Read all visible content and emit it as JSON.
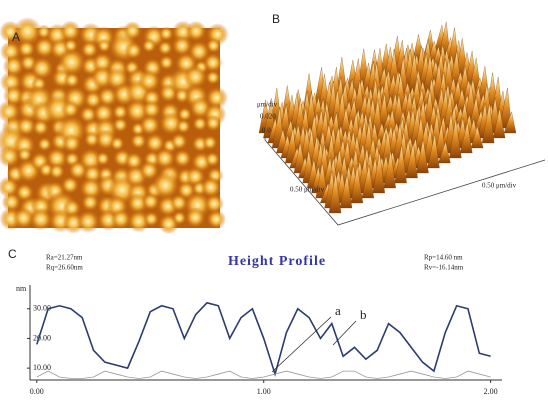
{
  "panels": {
    "a_label": "A",
    "b_label": "B",
    "c_label": "C"
  },
  "surface": {
    "z_unit": "μm/div",
    "z_value": "0.020",
    "z_zero": "0.0",
    "x_axis": "0.50 μm/div",
    "y_axis": "0.50 μm/div"
  },
  "stats": {
    "left": [
      "Ra=21.27nm",
      "Rq=26.60nm"
    ],
    "right": [
      "Rp=14.60 nm",
      "Rv=-16.14nm"
    ]
  },
  "chart_data": {
    "type": "line",
    "title": "Height Profile",
    "y_label": "nm",
    "x": [
      0.0,
      0.05,
      0.1,
      0.15,
      0.2,
      0.25,
      0.3,
      0.35,
      0.4,
      0.45,
      0.5,
      0.55,
      0.6,
      0.65,
      0.7,
      0.75,
      0.8,
      0.85,
      0.9,
      0.95,
      1.0,
      1.05,
      1.1,
      1.15,
      1.2,
      1.25,
      1.3,
      1.35,
      1.4,
      1.45,
      1.5,
      1.55,
      1.6,
      1.65,
      1.7,
      1.75,
      1.8,
      1.85,
      1.9,
      1.95,
      2.0
    ],
    "series": [
      {
        "color": "#2c3c70",
        "values": [
          18,
          30,
          31,
          30,
          27,
          16,
          12,
          11,
          10,
          19,
          29,
          31,
          30,
          20,
          28,
          32,
          31,
          20,
          27,
          30,
          20,
          8,
          22,
          30,
          27,
          20,
          25,
          14,
          17,
          13,
          16,
          25,
          22,
          17,
          12,
          9,
          22,
          31,
          30,
          15,
          14
        ]
      },
      {
        "color": "#9a9a9a",
        "values": [
          7,
          9,
          7,
          6.5,
          6.5,
          7,
          9,
          8,
          7,
          6.5,
          7,
          9,
          8,
          7,
          6.5,
          7,
          8,
          9,
          7,
          6.5,
          7,
          8,
          9,
          8,
          7,
          6.5,
          7,
          9,
          9,
          7,
          6.5,
          7,
          8,
          9,
          8,
          7,
          6.5,
          7,
          9,
          8,
          7
        ]
      }
    ],
    "xlim": [
      -0.03,
      2.05
    ],
    "ylim": [
      6,
      38
    ],
    "xticks": [
      {
        "value": 0,
        "label": "0.00"
      },
      {
        "value": 1,
        "label": "1.00"
      },
      {
        "value": 2,
        "label": "2.00"
      }
    ],
    "yticks": [
      {
        "value": 10,
        "label": "10.00"
      },
      {
        "value": 20,
        "label": "20.00"
      },
      {
        "value": 30,
        "label": "30.00"
      }
    ],
    "annotations": [
      "a",
      "b"
    ]
  }
}
